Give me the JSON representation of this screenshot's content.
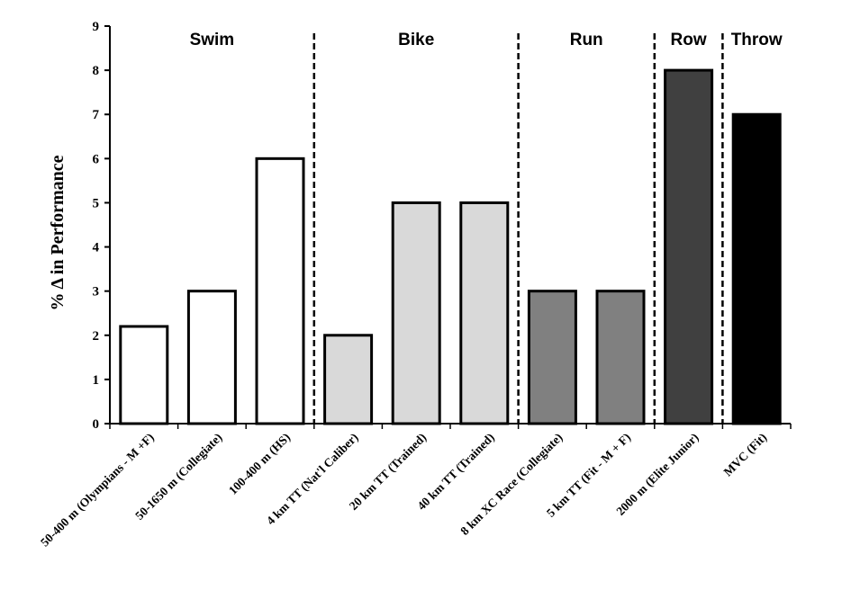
{
  "chart_data": {
    "type": "bar",
    "title": "",
    "xlabel": "",
    "ylabel": "% Δ in Performance",
    "ylim": [
      0,
      9
    ],
    "yticks": [
      0,
      1,
      2,
      3,
      4,
      5,
      6,
      7,
      8,
      9
    ],
    "grid": false,
    "categories": [
      "50-400 m (Olympians - M +F)",
      "50-1650 m (Collegiate)",
      "100-400 m (HS)",
      "4 km TT (Nat'l Caliber)",
      "20 km TT (Trained)",
      "40 km TT (Trained)",
      "8 km XC Race (Collegiate)",
      "5 km TT (Fit - M + F)",
      "2000 m (Elite Junior)",
      "MVC (Fit)"
    ],
    "values": [
      2.2,
      3,
      6,
      2,
      5,
      5,
      3,
      3,
      8,
      7
    ],
    "groups": [
      {
        "label": "Swim",
        "start": 0,
        "end": 2,
        "fill": "#ffffff"
      },
      {
        "label": "Bike",
        "start": 3,
        "end": 5,
        "fill": "#d9d9d9"
      },
      {
        "label": "Run",
        "start": 6,
        "end": 7,
        "fill": "#808080"
      },
      {
        "label": "Row",
        "start": 8,
        "end": 8,
        "fill": "#404040"
      },
      {
        "label": "Throw",
        "start": 9,
        "end": 9,
        "fill": "#000000"
      }
    ]
  }
}
